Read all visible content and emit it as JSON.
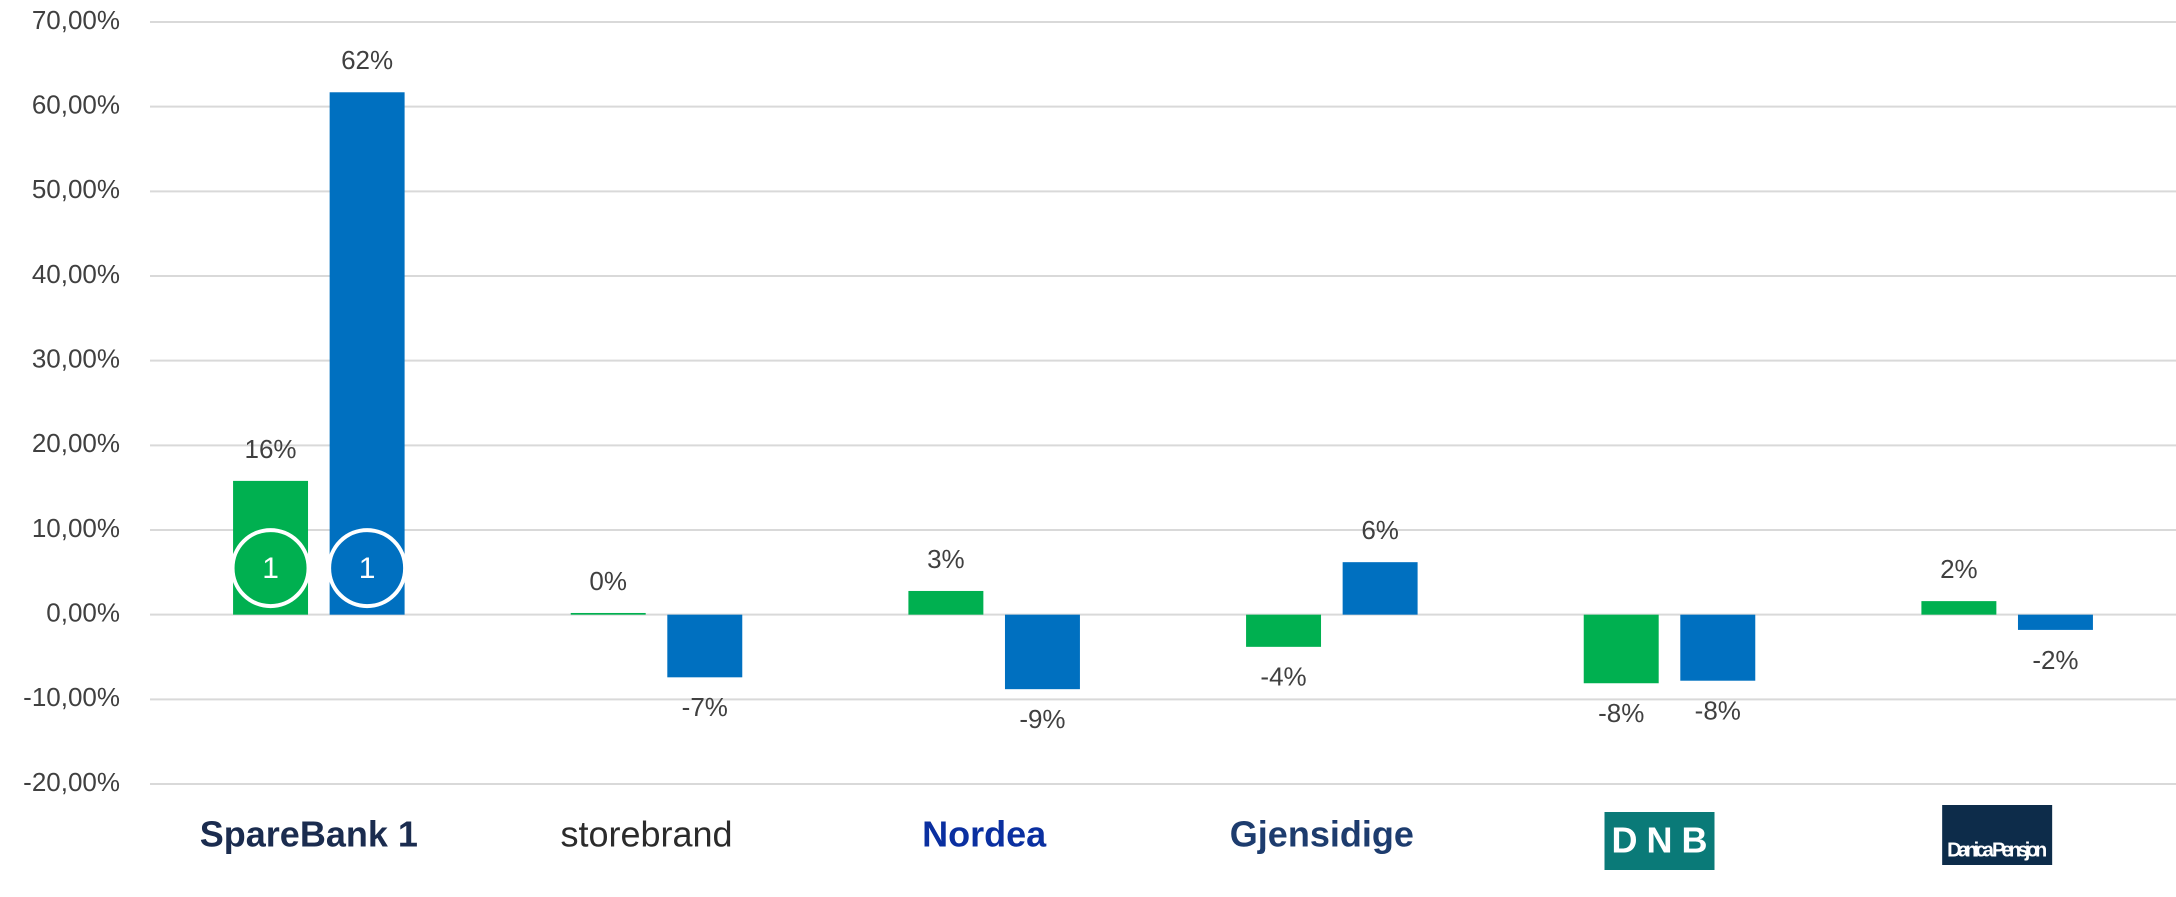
{
  "chart_data": {
    "type": "bar",
    "categories": [
      "SpareBank 1",
      "storebrand",
      "Nordea",
      "Gjensidige",
      "DNB",
      "Danica Pensjon"
    ],
    "category_colors": [
      "#1b2c4f",
      "#2b2b2b",
      "#0a2fa0",
      "#1d3c6e",
      "#0a7a78",
      "#0d2c4a"
    ],
    "series": [
      {
        "color": "#00b050",
        "values": [
          15.8,
          0.2,
          2.8,
          -3.8,
          -8.1,
          1.6
        ],
        "value_labels": [
          "16%",
          "0%",
          "3%",
          "-4%",
          "-8%",
          "2%"
        ]
      },
      {
        "color": "#0070c0",
        "values": [
          61.7,
          -7.4,
          -8.8,
          6.2,
          -7.8,
          -1.8
        ],
        "value_labels": [
          "62%",
          "-7%",
          "-9%",
          "6%",
          "-8%",
          "-2%"
        ]
      }
    ],
    "annotations": [
      {
        "text": "1",
        "series": 0,
        "category": 0
      },
      {
        "text": "1",
        "series": 1,
        "category": 0
      }
    ],
    "ylim": [
      -20,
      70
    ],
    "yticks": [
      {
        "value": -20,
        "label": "-20,00%"
      },
      {
        "value": -10,
        "label": "-10,00%"
      },
      {
        "value": 0,
        "label": "0,00%"
      },
      {
        "value": 10,
        "label": "10,00%"
      },
      {
        "value": 20,
        "label": "20,00%"
      },
      {
        "value": 30,
        "label": "30,00%"
      },
      {
        "value": 40,
        "label": "40,00%"
      },
      {
        "value": 50,
        "label": "50,00%"
      },
      {
        "value": 60,
        "label": "60,00%"
      },
      {
        "value": 70,
        "label": "70,00%"
      }
    ],
    "grid": true
  }
}
